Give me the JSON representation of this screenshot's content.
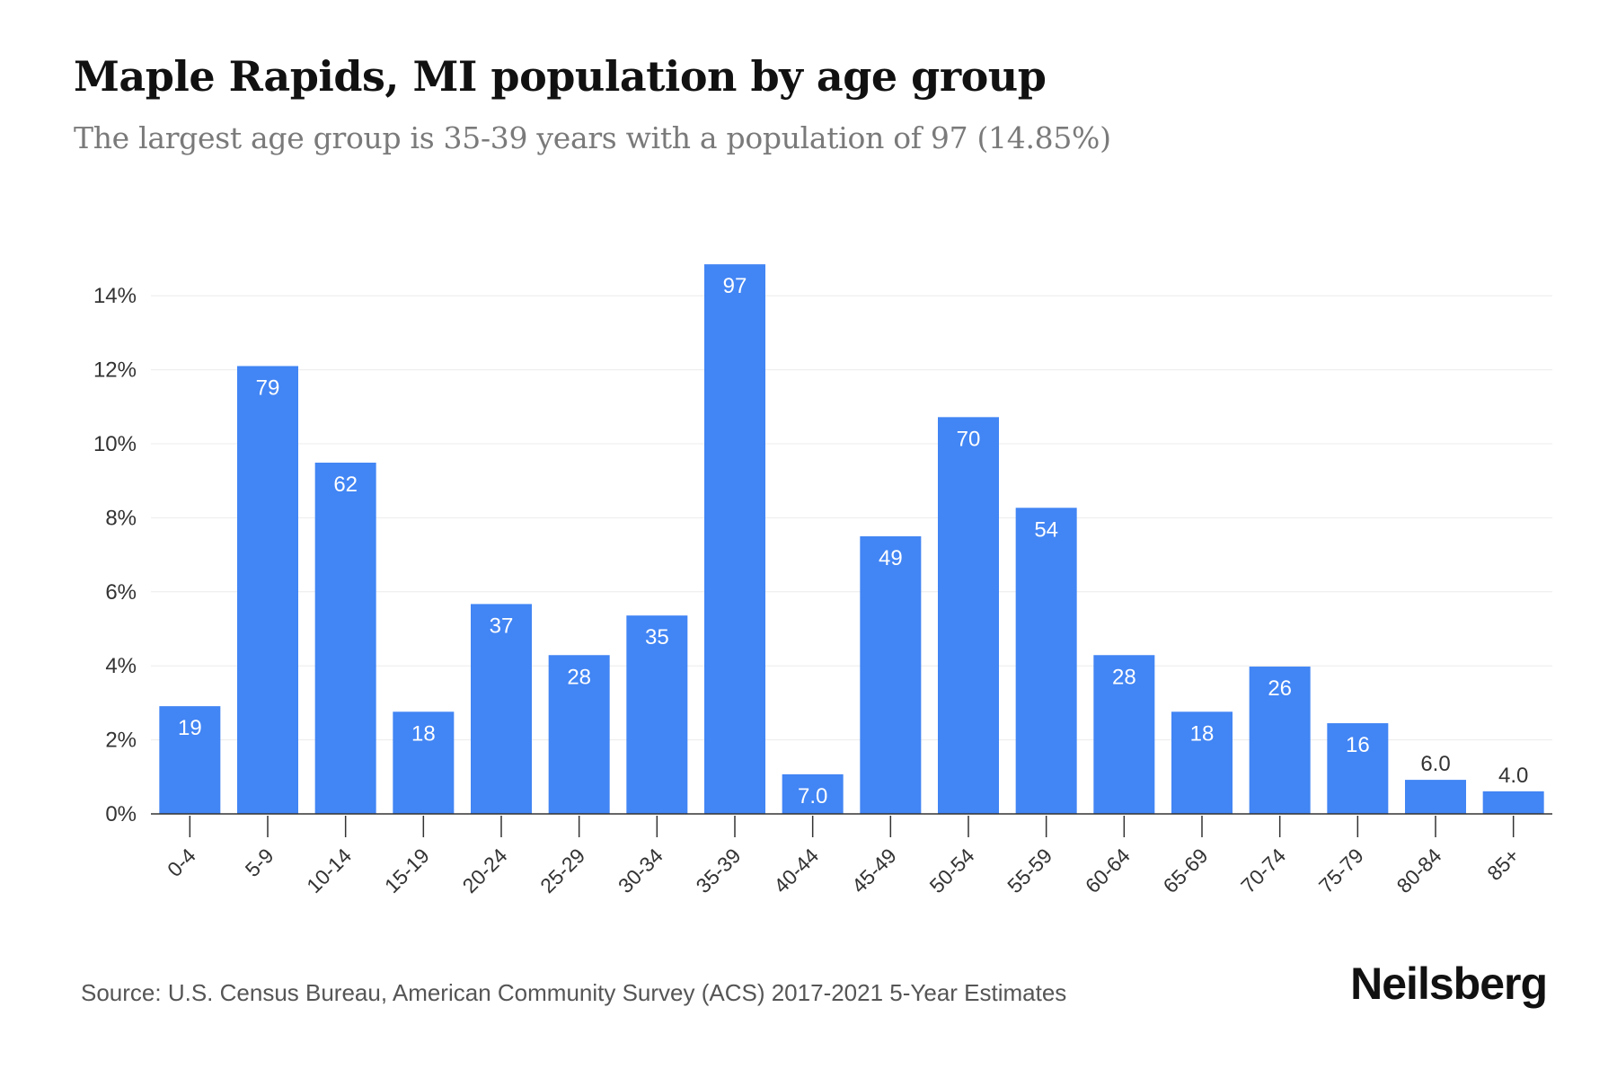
{
  "header": {
    "title": "Maple Rapids, MI population by age group",
    "subtitle": "The largest age group is 35-39 years with a population of 97 (14.85%)"
  },
  "footer": {
    "source": "Source: U.S. Census Bureau, American Community Survey (ACS) 2017-2021 5-Year Estimates",
    "brand": "Neilsberg"
  },
  "colors": {
    "bar": "#4285f4",
    "label_inside": "#ffffff",
    "label_outside": "#333333",
    "grid": "#ececec",
    "axis": "#333333",
    "tick_text": "#333333"
  },
  "chart_data": {
    "type": "bar",
    "title": "Maple Rapids, MI population by age group",
    "subtitle": "The largest age group is 35-39 years with a population of 97 (14.85%)",
    "categories": [
      "0-4",
      "5-9",
      "10-14",
      "15-19",
      "20-24",
      "25-29",
      "30-34",
      "35-39",
      "40-44",
      "45-49",
      "50-54",
      "55-59",
      "60-64",
      "65-69",
      "70-74",
      "75-79",
      "80-84",
      "85+"
    ],
    "series": [
      {
        "values": [
          2.91,
          12.1,
          9.49,
          2.76,
          5.67,
          4.29,
          5.36,
          14.85,
          1.07,
          7.5,
          10.72,
          8.27,
          4.29,
          2.76,
          3.98,
          2.45,
          0.92,
          0.61
        ],
        "labels": [
          "19",
          "79",
          "62",
          "18",
          "37",
          "28",
          "35",
          "97",
          "7.0",
          "49",
          "70",
          "54",
          "28",
          "18",
          "26",
          "16",
          "6.0",
          "4.0"
        ]
      }
    ],
    "y_ticks": [
      "0%",
      "2%",
      "4%",
      "6%",
      "8%",
      "10%",
      "12%",
      "14%"
    ],
    "ylim": [
      0,
      15
    ],
    "xlabel": "",
    "ylabel": "",
    "grid": true,
    "legend": "none"
  }
}
